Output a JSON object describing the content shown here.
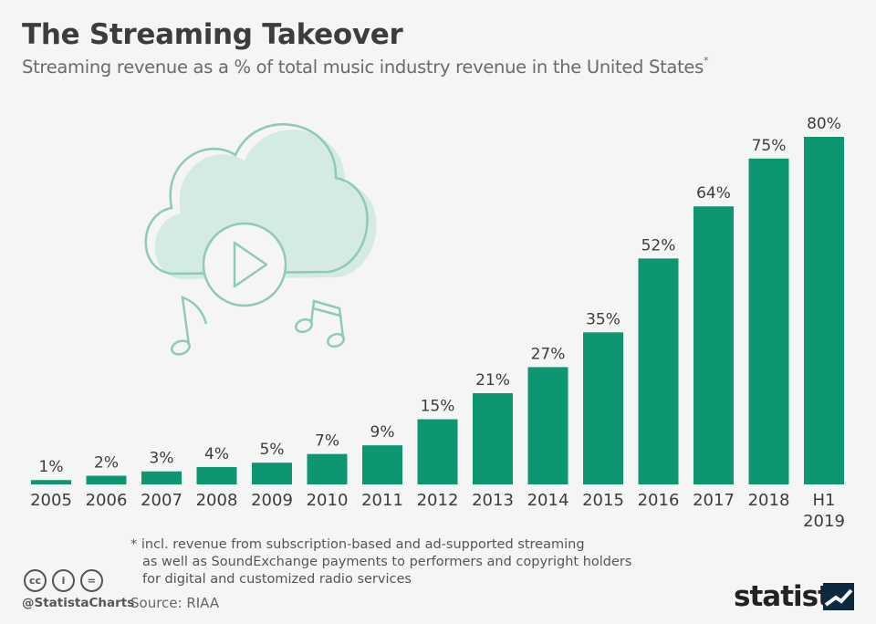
{
  "header": {
    "title": "The Streaming Takeover",
    "subtitle": "Streaming revenue as a % of total music industry revenue in the United States",
    "subtitle_marker": "*"
  },
  "chart_data": {
    "type": "bar",
    "categories": [
      "2005",
      "2006",
      "2007",
      "2008",
      "2009",
      "2010",
      "2011",
      "2012",
      "2013",
      "2014",
      "2015",
      "2016",
      "2017",
      "2018",
      "H1 2019"
    ],
    "values": [
      1,
      2,
      3,
      4,
      5,
      7,
      9,
      15,
      21,
      27,
      35,
      52,
      64,
      75,
      80
    ],
    "data_labels": [
      "1%",
      "2%",
      "3%",
      "4%",
      "5%",
      "7%",
      "9%",
      "15%",
      "21%",
      "27%",
      "35%",
      "52%",
      "64%",
      "75%",
      "80%"
    ],
    "ylim": [
      0,
      80
    ],
    "grid": false,
    "bar_color": "#0e9672"
  },
  "footnote": {
    "line1": "* incl. revenue from subscription-based and ad-supported streaming",
    "line2": "as well as SoundExchange payments to performers and copyright holders",
    "line3": "for digital and customized radio services"
  },
  "footer": {
    "handle": "@StatistaCharts",
    "source": "Source: RIAA",
    "brand": "statista",
    "license_icons": [
      "cc-icon",
      "by-icon",
      "nd-icon"
    ],
    "license_glyphs": [
      "cc",
      "i",
      "="
    ]
  },
  "illustration": {
    "icons": [
      "cloud-icon",
      "play-icon",
      "music-note-icon",
      "music-notes-icon"
    ],
    "cloud_fill": "#d3ebe4",
    "stroke": "#8fc9b8"
  }
}
